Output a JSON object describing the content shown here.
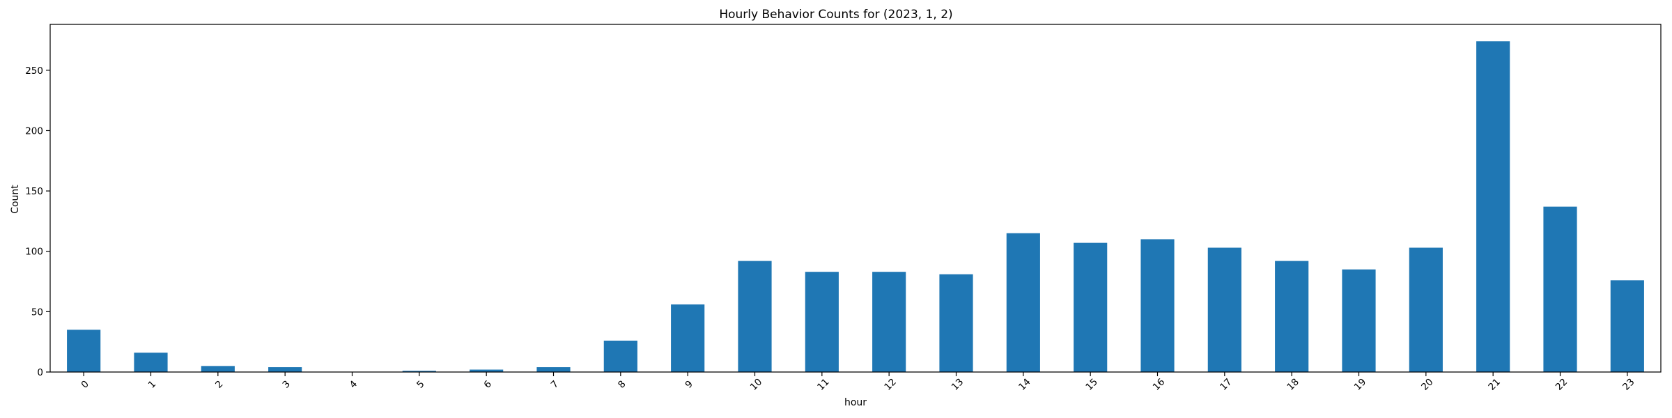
{
  "chart_data": {
    "type": "bar",
    "title": "Hourly Behavior Counts for (2023, 1, 2)",
    "xlabel": "hour",
    "ylabel": "Count",
    "categories": [
      "0",
      "1",
      "2",
      "3",
      "4",
      "5",
      "6",
      "7",
      "8",
      "9",
      "10",
      "11",
      "12",
      "13",
      "14",
      "15",
      "16",
      "17",
      "18",
      "19",
      "20",
      "21",
      "22",
      "23"
    ],
    "values": [
      35,
      16,
      5,
      4,
      0,
      1,
      2,
      4,
      26,
      56,
      92,
      83,
      83,
      81,
      115,
      107,
      110,
      103,
      92,
      85,
      103,
      274,
      137,
      76
    ],
    "ylim": [
      0,
      288
    ],
    "yticks": [
      0,
      50,
      100,
      150,
      200,
      250
    ],
    "ytick_labels": [
      "0",
      "50",
      "100",
      "150",
      "200",
      "250"
    ],
    "xtick_rotation_deg": -45,
    "grid": false,
    "legend": "none",
    "bar_color": "#1f77b4"
  }
}
